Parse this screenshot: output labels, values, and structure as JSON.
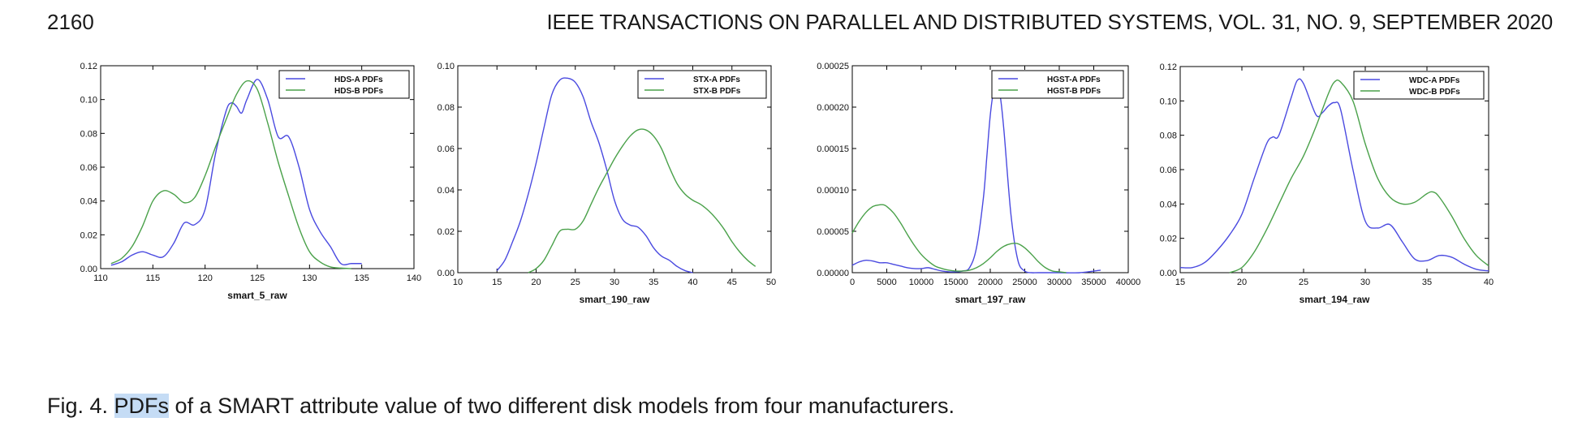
{
  "header": {
    "page_number": "2160",
    "journal": "IEEE TRANSACTIONS ON PARALLEL AND DISTRIBUTED SYSTEMS, VOL. 31, NO. 9, SEPTEMBER 2020"
  },
  "caption": {
    "prefix": "Fig. 4.",
    "highlight": "PDFs",
    "rest": " of a SMART attribute value of two different disk models from four manufacturers."
  },
  "colors": {
    "series_a": "#4a4ae0",
    "series_b": "#4aa14a",
    "highlight": "#c5dcf5"
  },
  "chart_data": [
    {
      "type": "line",
      "xlabel": "smart_5_raw",
      "xlim": [
        110,
        140
      ],
      "ylim": [
        0,
        0.12
      ],
      "xticks": [
        "110",
        "115",
        "120",
        "125",
        "130",
        "135",
        "140"
      ],
      "yticks": [
        "0.00",
        "0.02",
        "0.04",
        "0.06",
        "0.08",
        "0.10",
        "0.12"
      ],
      "legend_position": "top-right",
      "series": [
        {
          "name": "HDS-A  PDFs",
          "color": "#4a4ae0",
          "x": [
            111,
            112,
            113,
            114,
            115,
            116,
            117,
            118,
            119,
            120,
            121,
            122,
            122.5,
            123,
            123.5,
            124,
            125,
            126,
            127,
            128,
            129,
            130,
            131,
            132,
            133,
            134,
            135
          ],
          "y": [
            0.002,
            0.004,
            0.008,
            0.01,
            0.008,
            0.007,
            0.015,
            0.027,
            0.026,
            0.035,
            0.068,
            0.093,
            0.098,
            0.096,
            0.092,
            0.1,
            0.112,
            0.1,
            0.078,
            0.078,
            0.06,
            0.035,
            0.022,
            0.013,
            0.003,
            0.003,
            0.003
          ]
        },
        {
          "name": "HDS-B  PDFs",
          "color": "#4aa14a",
          "x": [
            111,
            112,
            113,
            114,
            115,
            116,
            117,
            118,
            119,
            120,
            121,
            122,
            123,
            124,
            125,
            126,
            127,
            128,
            129,
            130,
            131,
            132,
            133,
            134
          ],
          "y": [
            0.003,
            0.006,
            0.013,
            0.025,
            0.04,
            0.046,
            0.044,
            0.039,
            0.042,
            0.055,
            0.072,
            0.088,
            0.103,
            0.111,
            0.106,
            0.086,
            0.063,
            0.043,
            0.024,
            0.01,
            0.004,
            0.001,
            0.0003,
            0.0
          ]
        }
      ]
    },
    {
      "type": "line",
      "xlabel": "smart_190_raw",
      "xlim": [
        10,
        50
      ],
      "ylim": [
        0,
        0.1
      ],
      "xticks": [
        "10",
        "15",
        "20",
        "25",
        "30",
        "35",
        "40",
        "45",
        "50"
      ],
      "yticks": [
        "0.00",
        "0.02",
        "0.04",
        "0.06",
        "0.08",
        "0.10"
      ],
      "legend_position": "top-right",
      "series": [
        {
          "name": "STX-A  PDFs",
          "color": "#4a4ae0",
          "x": [
            15,
            16,
            17,
            18,
            19,
            20,
            21,
            22,
            23,
            24,
            25,
            26,
            27,
            28,
            29,
            30,
            31,
            32,
            33,
            34,
            35,
            36,
            37,
            38,
            39,
            40
          ],
          "y": [
            0.001,
            0.006,
            0.015,
            0.025,
            0.038,
            0.053,
            0.07,
            0.086,
            0.093,
            0.094,
            0.092,
            0.085,
            0.073,
            0.063,
            0.05,
            0.035,
            0.026,
            0.023,
            0.022,
            0.018,
            0.012,
            0.008,
            0.006,
            0.003,
            0.001,
            0.0
          ]
        },
        {
          "name": "STX-B  PDFs",
          "color": "#4aa14a",
          "x": [
            19,
            20,
            21,
            22,
            23,
            24,
            25,
            26,
            27,
            28,
            29,
            30,
            31,
            32,
            33,
            34,
            35,
            36,
            37,
            38,
            39,
            40,
            41,
            42,
            43,
            44,
            45,
            46,
            47,
            48
          ],
          "y": [
            0.0,
            0.002,
            0.006,
            0.013,
            0.02,
            0.021,
            0.021,
            0.025,
            0.033,
            0.041,
            0.048,
            0.055,
            0.061,
            0.066,
            0.069,
            0.069,
            0.066,
            0.06,
            0.051,
            0.043,
            0.038,
            0.035,
            0.033,
            0.03,
            0.026,
            0.021,
            0.015,
            0.01,
            0.006,
            0.003
          ]
        }
      ]
    },
    {
      "type": "line",
      "xlabel": "smart_197_raw",
      "xlim": [
        0,
        40000
      ],
      "ylim": [
        0,
        0.00025
      ],
      "xticks": [
        "0",
        "5000",
        "10000",
        "15000",
        "20000",
        "25000",
        "30000",
        "35000",
        "40000"
      ],
      "yticks": [
        "0.00000",
        "0.00005",
        "0.00010",
        "0.00015",
        "0.00020",
        "0.00025"
      ],
      "legend_position": "top-right",
      "series": [
        {
          "name": "HGST-A  PDFs",
          "color": "#4a4ae0",
          "x": [
            0,
            1000,
            2000,
            3000,
            4000,
            5000,
            6000,
            7000,
            8000,
            9000,
            10000,
            11000,
            12000,
            13000,
            14000,
            15000,
            16000,
            17000,
            18000,
            19000,
            19500,
            20000,
            20500,
            21000,
            21500,
            22000,
            23000,
            24000,
            25000,
            26000,
            27000,
            30000,
            33000,
            36000
          ],
          "y": [
            9e-06,
            1.3e-05,
            1.5e-05,
            1.4e-05,
            1.2e-05,
            1.2e-05,
            1e-05,
            8e-06,
            6e-06,
            5e-06,
            5e-06,
            6e-06,
            4e-06,
            2e-06,
            1e-06,
            1e-06,
            2e-06,
            6e-06,
            3e-05,
            9e-05,
            0.00014,
            0.00019,
            0.00022,
            0.000226,
            0.00021,
            0.00017,
            7e-05,
            1.5e-05,
            2e-06,
            0.0,
            0.0,
            0.0,
            0.0,
            3e-06
          ]
        },
        {
          "name": "HGST-B  PDFs",
          "color": "#4aa14a",
          "x": [
            0,
            1000,
            2000,
            3000,
            4000,
            4500,
            5000,
            6000,
            7000,
            8000,
            9000,
            10000,
            11000,
            12000,
            13000,
            14000,
            15000,
            16000,
            17000,
            18000,
            19000,
            20000,
            21000,
            22000,
            23000,
            24000,
            25000,
            26000,
            27000,
            28000,
            29000,
            30000,
            31000
          ],
          "y": [
            4.8e-05,
            6.2e-05,
            7.3e-05,
            8e-05,
            8.2e-05,
            8.2e-05,
            8e-05,
            7.2e-05,
            6e-05,
            4.6e-05,
            3.3e-05,
            2.2e-05,
            1.4e-05,
            8e-06,
            5e-06,
            3e-06,
            2e-06,
            2e-06,
            3e-06,
            6e-06,
            1.1e-05,
            1.8e-05,
            2.6e-05,
            3.2e-05,
            3.5e-05,
            3.5e-05,
            3e-05,
            2.2e-05,
            1.3e-05,
            6e-06,
            2e-06,
            1e-06,
            0.0
          ]
        }
      ]
    },
    {
      "type": "line",
      "xlabel": "smart_194_raw",
      "xlim": [
        15,
        40
      ],
      "ylim": [
        0,
        0.12
      ],
      "xticks": [
        "15",
        "20",
        "25",
        "30",
        "35",
        "40"
      ],
      "yticks": [
        "0.00",
        "0.02",
        "0.04",
        "0.06",
        "0.08",
        "0.10",
        "0.12"
      ],
      "legend_position": "top-right",
      "series": [
        {
          "name": "WDC-A  PDFs",
          "color": "#4a4ae0",
          "x": [
            15,
            16,
            17,
            18,
            19,
            20,
            21,
            22,
            22.5,
            23,
            24,
            24.5,
            25,
            26,
            26.5,
            27,
            27.5,
            28,
            29,
            30,
            31,
            32,
            33,
            34,
            35,
            36,
            37,
            38,
            39,
            40
          ],
          "y": [
            0.003,
            0.003,
            0.006,
            0.013,
            0.022,
            0.034,
            0.055,
            0.075,
            0.079,
            0.08,
            0.102,
            0.112,
            0.11,
            0.092,
            0.093,
            0.097,
            0.099,
            0.095,
            0.06,
            0.03,
            0.026,
            0.028,
            0.018,
            0.008,
            0.007,
            0.01,
            0.009,
            0.005,
            0.002,
            0.001
          ]
        },
        {
          "name": "WDC-B  PDFs",
          "color": "#4aa14a",
          "x": [
            19,
            20,
            21,
            22,
            23,
            24,
            25,
            26,
            27,
            27.5,
            28,
            29,
            30,
            31,
            32,
            33,
            34,
            35,
            35.5,
            36,
            37,
            38,
            39,
            40
          ],
          "y": [
            0.0,
            0.003,
            0.012,
            0.025,
            0.04,
            0.055,
            0.068,
            0.085,
            0.104,
            0.111,
            0.111,
            0.1,
            0.075,
            0.055,
            0.044,
            0.04,
            0.041,
            0.046,
            0.047,
            0.044,
            0.033,
            0.02,
            0.01,
            0.004
          ]
        }
      ]
    }
  ]
}
